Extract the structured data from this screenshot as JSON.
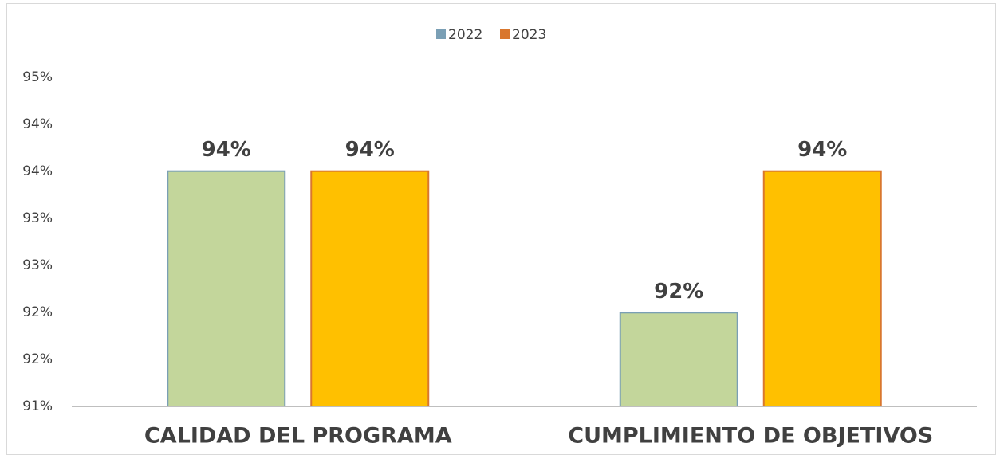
{
  "chart_data": {
    "type": "bar",
    "categories": [
      "CALIDAD DEL PROGRAMA",
      "CUMPLIMIENTO DE OBJETIVOS"
    ],
    "series": [
      {
        "name": "2022",
        "color": "#7a9fb5",
        "fill": "#c3d69b",
        "values": [
          93.86,
          92.14
        ],
        "value_labels": [
          "94%",
          "92%"
        ]
      },
      {
        "name": "2023",
        "color": "#d9772e",
        "fill": "#ffc000",
        "values": [
          93.86,
          93.86
        ],
        "value_labels": [
          "94%",
          "94%"
        ]
      }
    ],
    "ylim": [
      91,
      95
    ],
    "yticks": [
      {
        "value": 91,
        "label": "91%"
      },
      {
        "value": 91.571,
        "label": "92%"
      },
      {
        "value": 92.143,
        "label": "92%"
      },
      {
        "value": 92.714,
        "label": "93%"
      },
      {
        "value": 93.286,
        "label": "93%"
      },
      {
        "value": 93.857,
        "label": "94%"
      },
      {
        "value": 94.429,
        "label": "94%"
      },
      {
        "value": 95,
        "label": "95%"
      }
    ],
    "grid": false,
    "legend": "top"
  }
}
